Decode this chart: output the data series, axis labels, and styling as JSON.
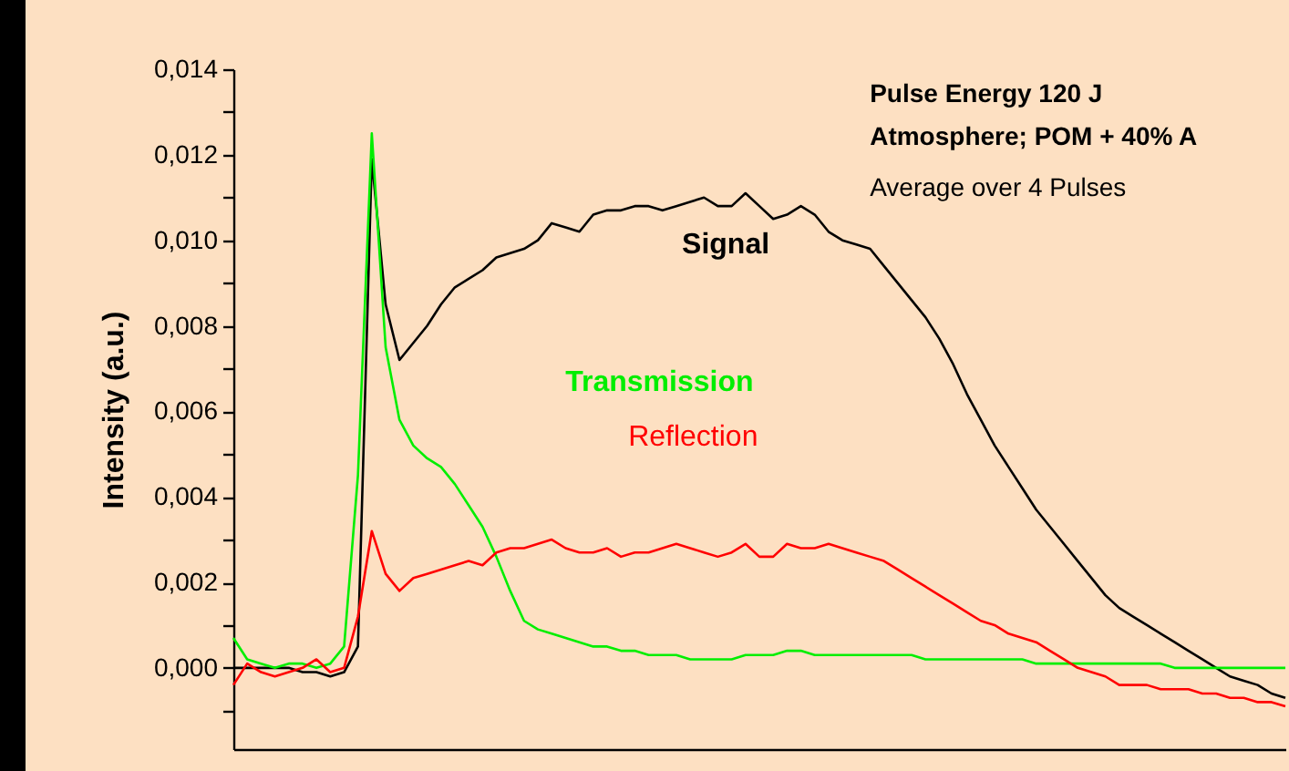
{
  "chart_data": {
    "type": "line",
    "ylabel": "Intensity (a.u.)",
    "annotations": [
      "Pulse Energy 120 J",
      "Atmosphere; POM + 40% A",
      "Average over 4 Pulses"
    ],
    "categories": [
      null,
      null,
      null,
      null,
      null,
      null,
      null,
      null,
      null,
      null,
      null,
      null,
      null,
      null,
      null,
      null,
      null,
      null,
      null,
      null,
      null,
      null,
      null,
      null,
      null,
      null,
      null,
      null,
      null,
      null,
      null,
      null,
      null,
      null,
      null,
      null,
      null,
      null,
      null,
      null,
      null,
      null,
      null,
      null,
      null,
      null,
      null,
      null,
      null,
      null,
      null,
      null,
      null,
      null,
      null,
      null,
      null,
      null,
      null,
      null,
      null,
      null,
      null,
      null,
      null,
      null,
      null,
      null,
      null,
      null,
      null,
      null,
      null,
      null,
      null,
      null,
      null
    ],
    "ylim": [
      -0.0019,
      0.014
    ],
    "yticks": [
      {
        "value": -0.001,
        "label": null
      },
      {
        "value": 0,
        "label": "0,000"
      },
      {
        "value": 0.001,
        "label": null
      },
      {
        "value": 0.002,
        "label": "0,002"
      },
      {
        "value": 0.003,
        "label": null
      },
      {
        "value": 0.004,
        "label": "0,004"
      },
      {
        "value": 0.005,
        "label": null
      },
      {
        "value": 0.006,
        "label": "0,006"
      },
      {
        "value": 0.007,
        "label": null
      },
      {
        "value": 0.008,
        "label": "0,008"
      },
      {
        "value": 0.009,
        "label": null
      },
      {
        "value": 0.01,
        "label": "0,010"
      },
      {
        "value": 0.011,
        "label": null
      },
      {
        "value": 0.012,
        "label": "0,012"
      },
      {
        "value": 0.013,
        "label": null
      },
      {
        "value": 0.014,
        "label": "0,014"
      }
    ],
    "tick_labels": "y",
    "grid": false,
    "series": [
      {
        "name": "Signal",
        "color": "#000000",
        "values": [
          0,
          0,
          0,
          0,
          0,
          -0.0001,
          -0.0001,
          -0.0002,
          -0.0001,
          0.0005,
          0.0119,
          0.0085,
          0.0072,
          0.0076,
          0.008,
          0.0085,
          0.0089,
          0.0091,
          0.0093,
          0.0096,
          0.0097,
          0.0098,
          0.01,
          0.0104,
          0.0103,
          0.0102,
          0.0106,
          0.0107,
          0.0107,
          0.0108,
          0.0108,
          0.0107,
          0.0108,
          0.0109,
          0.011,
          0.0108,
          0.0108,
          0.0111,
          0.0108,
          0.0105,
          0.0106,
          0.0108,
          0.0106,
          0.0102,
          0.01,
          0.0099,
          0.0098,
          0.0094,
          0.009,
          0.0086,
          0.0082,
          0.0077,
          0.0071,
          0.0064,
          0.0058,
          0.0052,
          0.0047,
          0.0042,
          0.0037,
          0.0033,
          0.0029,
          0.0025,
          0.0021,
          0.0017,
          0.0014,
          0.0012,
          0.001,
          0.0008,
          0.0006,
          0.0004,
          0.0002,
          0,
          -0.0002,
          -0.0003,
          -0.0004,
          -0.0006,
          -0.0007
        ]
      },
      {
        "name": "Transmission",
        "color": "#00ee00",
        "values": [
          0.0007,
          0.0002,
          0.0001,
          0,
          0.0001,
          0.0001,
          0,
          0.0001,
          0.0005,
          0.0045,
          0.0125,
          0.0075,
          0.0058,
          0.0052,
          0.0049,
          0.0047,
          0.0043,
          0.0038,
          0.0033,
          0.0026,
          0.0018,
          0.0011,
          0.0009,
          0.0008,
          0.0007,
          0.0006,
          0.0005,
          0.0005,
          0.0004,
          0.0004,
          0.0003,
          0.0003,
          0.0003,
          0.0002,
          0.0002,
          0.0002,
          0.0002,
          0.0003,
          0.0003,
          0.0003,
          0.0004,
          0.0004,
          0.0003,
          0.0003,
          0.0003,
          0.0003,
          0.0003,
          0.0003,
          0.0003,
          0.0003,
          0.0002,
          0.0002,
          0.0002,
          0.0002,
          0.0002,
          0.0002,
          0.0002,
          0.0002,
          0.0001,
          0.0001,
          0.0001,
          0.0001,
          0.0001,
          0.0001,
          0.0001,
          0.0001,
          0.0001,
          0.0001,
          0,
          0,
          0,
          0,
          0,
          0,
          0,
          0,
          0
        ]
      },
      {
        "name": "Reflection",
        "color": "#ff0000",
        "values": [
          -0.0004,
          0.0001,
          -0.0001,
          -0.0002,
          -0.0001,
          0,
          0.0002,
          -0.0001,
          0,
          0.0012,
          0.0032,
          0.0022,
          0.0018,
          0.0021,
          0.0022,
          0.0023,
          0.0024,
          0.0025,
          0.0024,
          0.0027,
          0.0028,
          0.0028,
          0.0029,
          0.003,
          0.0028,
          0.0027,
          0.0027,
          0.0028,
          0.0026,
          0.0027,
          0.0027,
          0.0028,
          0.0029,
          0.0028,
          0.0027,
          0.0026,
          0.0027,
          0.0029,
          0.0026,
          0.0026,
          0.0029,
          0.0028,
          0.0028,
          0.0029,
          0.0028,
          0.0027,
          0.0026,
          0.0025,
          0.0023,
          0.0021,
          0.0019,
          0.0017,
          0.0015,
          0.0013,
          0.0011,
          0.001,
          0.0008,
          0.0007,
          0.0006,
          0.0004,
          0.0002,
          0,
          -0.0001,
          -0.0002,
          -0.0004,
          -0.0004,
          -0.0004,
          -0.0005,
          -0.0005,
          -0.0005,
          -0.0006,
          -0.0006,
          -0.0007,
          -0.0007,
          -0.0008,
          -0.0008,
          -0.0009
        ]
      }
    ]
  }
}
